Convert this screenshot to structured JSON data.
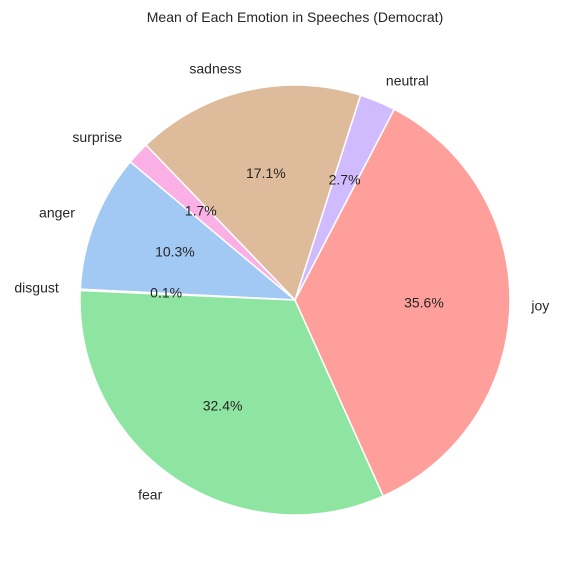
{
  "chart_data": {
    "type": "pie",
    "title": "Mean of Each Emotion in Speeches (Democrat)",
    "start_angle_deg": 140,
    "direction": "counterclockwise",
    "slices": [
      {
        "label": "anger",
        "value": 10.3,
        "pct_label": "10.3%",
        "color": "#a1c9f4"
      },
      {
        "label": "disgust",
        "value": 0.1,
        "pct_label": "0.1%",
        "color": "#ffb482"
      },
      {
        "label": "fear",
        "value": 32.4,
        "pct_label": "32.4%",
        "color": "#8de5a1"
      },
      {
        "label": "joy",
        "value": 35.6,
        "pct_label": "35.6%",
        "color": "#ff9f9b"
      },
      {
        "label": "neutral",
        "value": 2.7,
        "pct_label": "2.7%",
        "color": "#d0bbff"
      },
      {
        "label": "sadness",
        "value": 17.1,
        "pct_label": "17.1%",
        "color": "#debb9b"
      },
      {
        "label": "surprise",
        "value": 1.7,
        "pct_label": "1.7%",
        "color": "#fab0e4"
      }
    ]
  }
}
